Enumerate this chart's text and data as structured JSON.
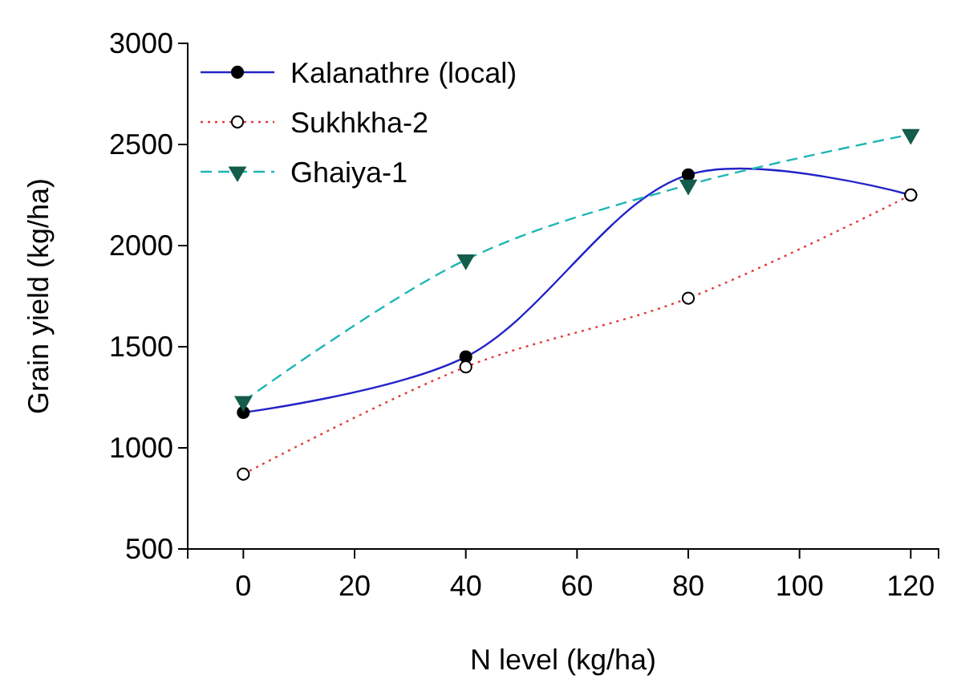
{
  "chart_data": {
    "type": "line",
    "xlabel": "N level (kg/ha)",
    "ylabel": "Grain yield (kg/ha)",
    "x": [
      0,
      40,
      80,
      120
    ],
    "xlim": [
      -10,
      125
    ],
    "xticks": [
      0,
      20,
      40,
      60,
      80,
      100,
      120
    ],
    "ylim": [
      500,
      3000
    ],
    "yticks": [
      500,
      1000,
      1500,
      2000,
      2500,
      3000
    ],
    "legend": "top left",
    "grid": false,
    "series": [
      {
        "name": "Kalanathre (local)",
        "color": "#2323c8",
        "values": [
          1175,
          1450,
          2350,
          2250
        ],
        "marker": "circle",
        "line_style": "solid"
      },
      {
        "name": "Sukhkha-2",
        "color": "#e03c3c",
        "values": [
          870,
          1400,
          1740,
          2250
        ],
        "marker": "circle",
        "line_style": "dotted"
      },
      {
        "name": "Ghaiya-1",
        "color": "#1fb5b5",
        "values": [
          1230,
          1930,
          2300,
          2550
        ],
        "marker": "triangle",
        "line_style": "dashed"
      }
    ]
  }
}
